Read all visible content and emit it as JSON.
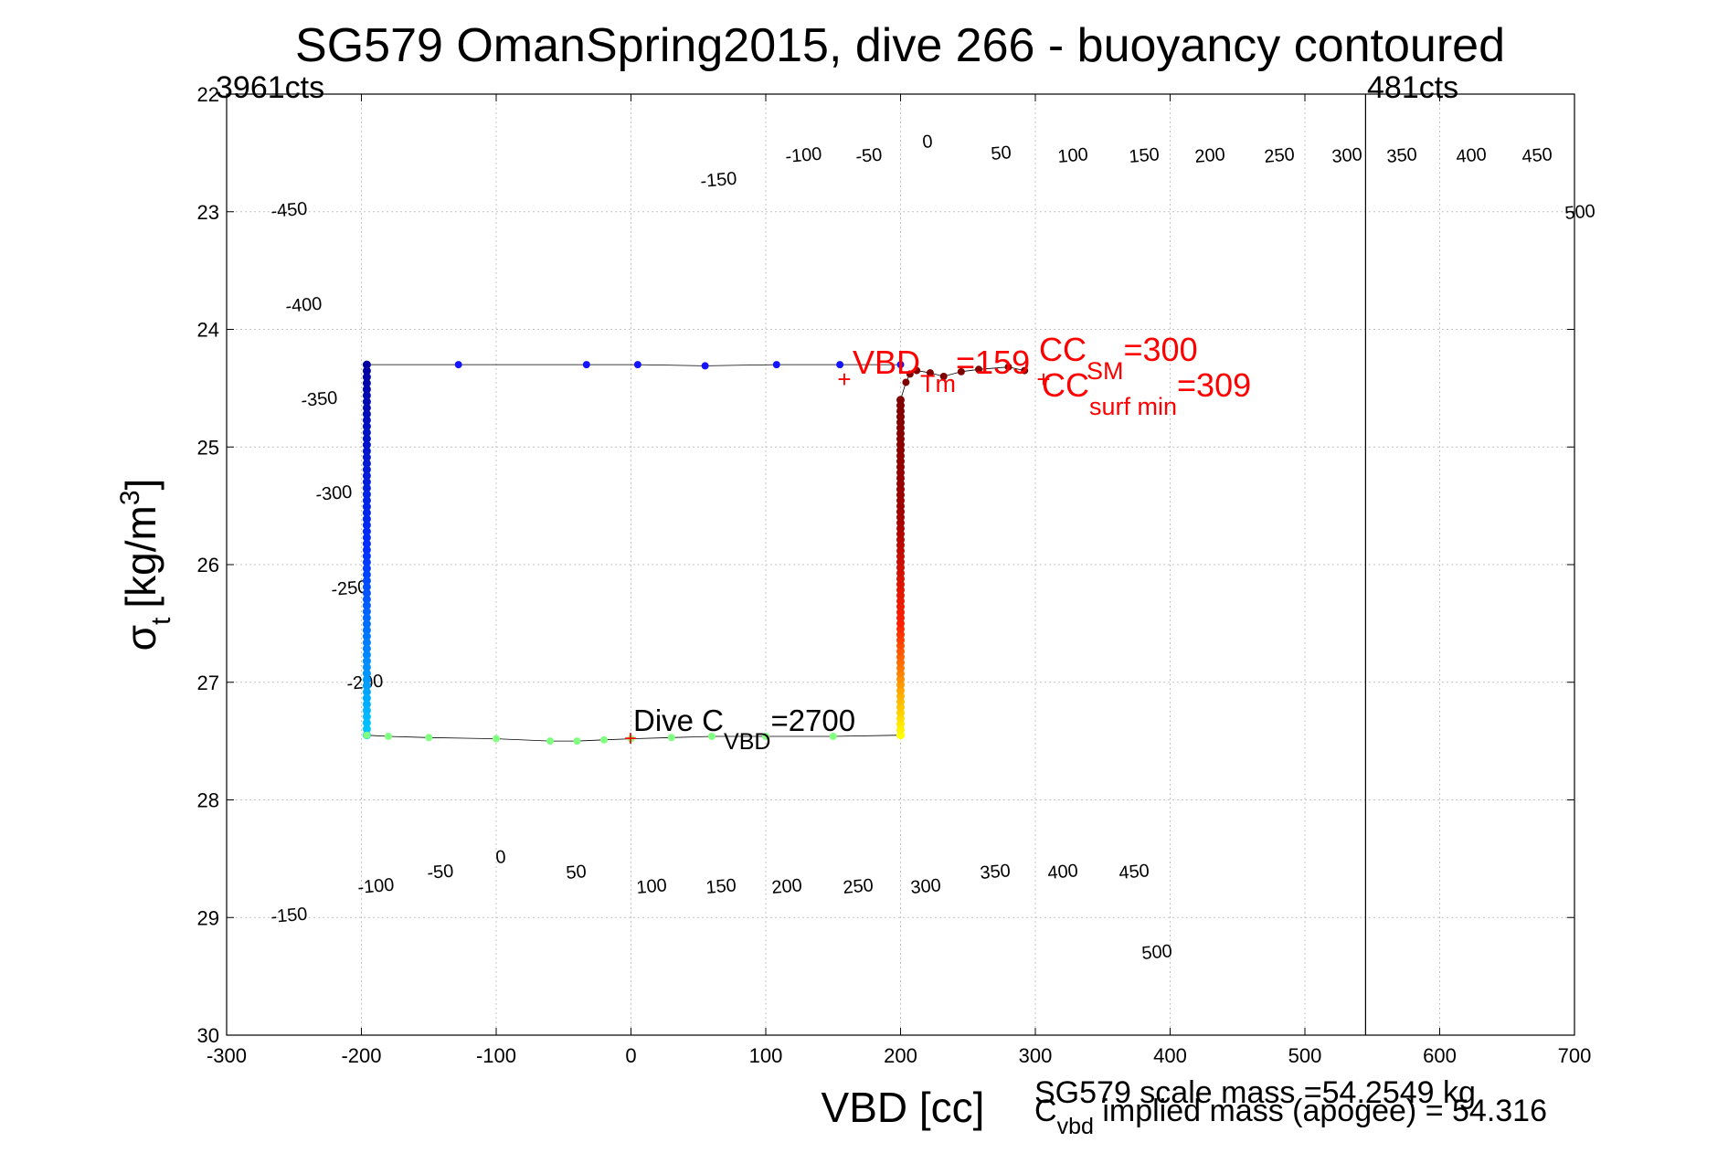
{
  "chart_data": {
    "type": "scatter",
    "title": "SG579 OmanSpring2015, dive 266 - buoyancy contoured",
    "xlabel": "VBD [cc]",
    "ylabel_symbol": "σ",
    "ylabel_sub": "t",
    "ylabel_units": "[kg/m",
    "ylabel_sup": "3",
    "ylabel_close": "]",
    "xlim": [
      -300,
      700
    ],
    "ylim": [
      22,
      30
    ],
    "y_reversed": true,
    "grid": true,
    "x_ticks": [
      "-300",
      "-200",
      "-100",
      "0",
      "100",
      "200",
      "300",
      "400",
      "500",
      "600",
      "700"
    ],
    "y_ticks": [
      "22",
      "23",
      "24",
      "25",
      "26",
      "27",
      "28",
      "29",
      "30"
    ],
    "corner_labels": {
      "left": "3961cts",
      "right": "481cts"
    },
    "counts_line_x": 545,
    "colors": {
      "contour": "#00ffff",
      "zero_contour": "#0000ff",
      "highlight_contour": "#ff00ff",
      "annotation": "#ff0000",
      "path": "#000000"
    },
    "contour_levels": [
      -500,
      -450,
      -400,
      -350,
      -300,
      -250,
      -200,
      -150,
      -100,
      -50,
      0,
      50,
      100,
      150,
      200,
      250,
      300,
      350,
      400,
      450,
      500
    ],
    "contour_offsets": [
      -3100,
      -2600,
      -2100,
      -1600,
      -1100,
      -600,
      -100,
      400,
      900,
      1400,
      1900,
      2400,
      2900,
      3400,
      3900,
      4400,
      4900,
      5400,
      5900,
      6400,
      6900,
      7400,
      7900,
      8400,
      8900,
      9400,
      9900,
      10400
    ],
    "zero_contour_offset": 1900,
    "highlight_contour_offsets": [
      2900,
      3900
    ],
    "contour_slope_cc_per_sigma": -1000,
    "top_contour_labels": [
      "-450",
      "-400",
      "-350",
      "-300",
      "-250",
      "-200",
      "-150",
      "-100",
      "-50",
      "0",
      "50",
      "100",
      "150",
      "200",
      "250",
      "300",
      "350",
      "400",
      "450",
      "500"
    ],
    "bottom_contour_labels": [
      "-150",
      "-100",
      "-50",
      "0",
      "50",
      "100",
      "150",
      "200",
      "250",
      "300",
      "350",
      "400",
      "450",
      "500"
    ],
    "series": [
      {
        "kind": "dive",
        "color": "#1414ff",
        "points": [
          [
            200,
            24.3
          ],
          [
            155,
            24.3
          ],
          [
            108,
            24.3
          ],
          [
            55,
            24.31
          ],
          [
            5,
            24.3
          ],
          [
            -33,
            24.3
          ],
          [
            -128,
            24.3
          ],
          [
            -196,
            24.3
          ]
        ]
      },
      {
        "kind": "descent",
        "x": -196,
        "sigma_from": 24.3,
        "sigma_to": 27.45,
        "colors": [
          "#0000a0",
          "#0030ff",
          "#00c8ff"
        ]
      },
      {
        "kind": "bottom",
        "color": "#80ff80",
        "points": [
          [
            -196,
            27.45
          ],
          [
            -180,
            27.46
          ],
          [
            -150,
            27.47
          ],
          [
            -100,
            27.48
          ],
          [
            -60,
            27.5
          ],
          [
            -40,
            27.5
          ],
          [
            -20,
            27.49
          ],
          [
            0,
            27.48
          ],
          [
            30,
            27.47
          ],
          [
            60,
            27.46
          ],
          [
            100,
            27.46
          ],
          [
            150,
            27.46
          ],
          [
            200,
            27.45
          ]
        ]
      },
      {
        "kind": "ascent",
        "x": 200,
        "sigma_from": 27.45,
        "sigma_to": 24.6,
        "colors": [
          "#ffff00",
          "#ff2000",
          "#a00000",
          "#800000"
        ]
      },
      {
        "kind": "surface",
        "color": "#800000",
        "points": [
          [
            200,
            24.6
          ],
          [
            204,
            24.45
          ],
          [
            207,
            24.38
          ],
          [
            212,
            24.35
          ],
          [
            222,
            24.37
          ],
          [
            232,
            24.4
          ],
          [
            245,
            24.36
          ],
          [
            258,
            24.34
          ],
          [
            280,
            24.32
          ],
          [
            292,
            24.35
          ]
        ]
      }
    ],
    "annotations": {
      "vbd_tm": {
        "main": "VBD",
        "sub": "Tm",
        "tail": "=159",
        "x": 159,
        "sigma": 24.38
      },
      "cc_sm": {
        "main": "CC",
        "sub": "SM",
        "tail": "=300",
        "x": 300,
        "sigma": 24.38
      },
      "cc_surf_min": {
        "main": "CC",
        "sub": "surf min",
        "tail": "=309",
        "x": 309,
        "sigma": 24.38
      },
      "dive_c_vbd": {
        "main": "Dive C",
        "sub": "VBD",
        "tail": "=2700",
        "x": 0,
        "sigma": 27.48
      }
    },
    "notes": {
      "scale_mass": "SG579 scale mass =54.2549 kg",
      "implied_mass_main": "C",
      "implied_mass_sub": "vbd",
      "implied_mass_tail": " implied mass (apogee) = 54.316"
    }
  }
}
